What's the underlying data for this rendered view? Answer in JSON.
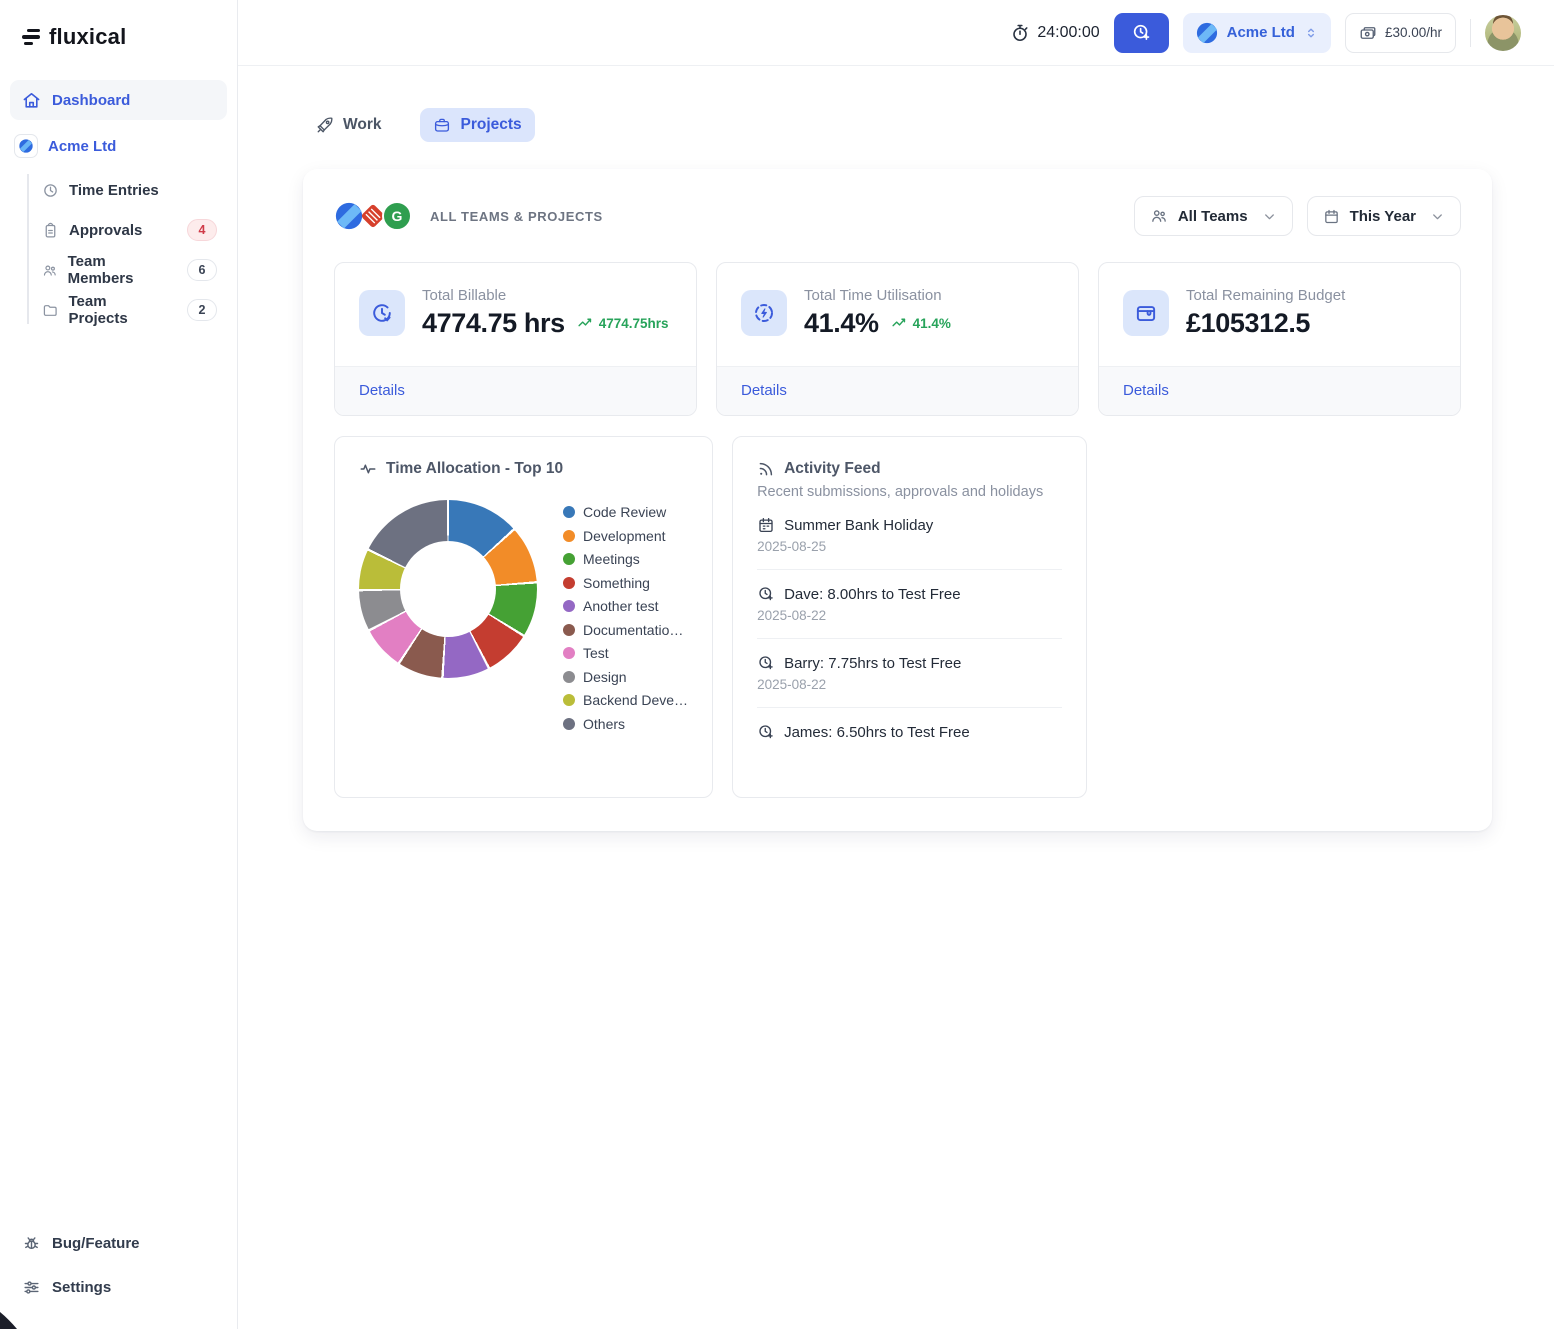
{
  "app": {
    "name": "fluxical"
  },
  "topbar": {
    "timer": "24:00:00",
    "org": "Acme Ltd",
    "rate": "£30.00/hr"
  },
  "sidebar": {
    "dashboard_label": "Dashboard",
    "org_label": "Acme Ltd",
    "sub_items": [
      {
        "label": "Time Entries",
        "icon": "clock-icon",
        "badge": "",
        "badge_style": ""
      },
      {
        "label": "Approvals",
        "icon": "clipboard-icon",
        "badge": "4",
        "badge_style": "red"
      },
      {
        "label": "Team Members",
        "icon": "users-icon",
        "badge": "6",
        "badge_style": "neutral"
      },
      {
        "label": "Team Projects",
        "icon": "folder-icon",
        "badge": "2",
        "badge_style": "neutral"
      }
    ],
    "bug_label": "Bug/Feature",
    "settings_label": "Settings"
  },
  "tabs": [
    {
      "label": "Work",
      "active": false
    },
    {
      "label": "Projects",
      "active": true
    }
  ],
  "panel": {
    "header": "ALL TEAMS & PROJECTS",
    "filters": [
      {
        "label": "All Teams",
        "icon": "users-icon"
      },
      {
        "label": "This Year",
        "icon": "calendar-icon"
      }
    ]
  },
  "stats": [
    {
      "title": "Total Billable",
      "value": "4774.75 hrs",
      "trend": "4774.75hrs",
      "link": "Details",
      "icon": "clock-history-icon"
    },
    {
      "title": "Total Time Utilisation",
      "value": "41.4%",
      "trend": "41.4%",
      "link": "Details",
      "icon": "bolt-circle-icon"
    },
    {
      "title": "Total Remaining Budget",
      "value": "£105312.5",
      "trend": "",
      "link": "Details",
      "icon": "wallet-icon"
    }
  ],
  "chart_data": {
    "type": "pie",
    "subtype": "donut",
    "title": "Time Allocation - Top 10",
    "labels": [
      "Code Review",
      "Development",
      "Meetings",
      "Something",
      "Another test",
      "Documentatio…",
      "Test",
      "Design",
      "Backend Deve…",
      "Others"
    ],
    "values": [
      13.3,
      10.5,
      10.0,
      8.6,
      8.6,
      8.3,
      8.0,
      7.5,
      7.5,
      17.7
    ],
    "unit": "percent-of-donut",
    "colors": [
      "#3878b8",
      "#f28c28",
      "#45a134",
      "#c43d30",
      "#9468c4",
      "#8a5a4e",
      "#e27fc3",
      "#8c8c90",
      "#babd39",
      "#6d7181"
    ],
    "legend_position": "right",
    "hole": 0.54
  },
  "activity": {
    "title": "Activity Feed",
    "subtitle": "Recent submissions, approvals and holidays",
    "items": [
      {
        "icon": "calendar-icon",
        "text": "Summer Bank Holiday",
        "date": "2025-08-25"
      },
      {
        "icon": "clock-plus-icon",
        "text": "Dave: 8.00hrs to Test Free",
        "date": "2025-08-22"
      },
      {
        "icon": "clock-plus-icon",
        "text": "Barry: 7.75hrs to Test Free",
        "date": "2025-08-22"
      },
      {
        "icon": "clock-plus-icon",
        "text": "James: 6.50hrs to Test Free",
        "date": ""
      }
    ]
  },
  "colors": {
    "accent_blue": "#3b5bdb",
    "accent_blue_light": "#dbe5fc",
    "trend_green": "#27a35a",
    "badge_red_text": "#d03c49",
    "badge_red_bg": "#fdecec"
  },
  "icons": {
    "logo-icon": "three-bars",
    "home-icon": "house",
    "stopwatch-icon": "stopwatch",
    "clock-plus-icon": "clock-with-plus",
    "banknote-icon": "banknote",
    "chevrons-up-down-icon": "sort-arrows",
    "rocket-icon": "rocket",
    "briefcase-icon": "briefcase",
    "pulse-icon": "activity-pulse",
    "rss-icon": "rss-feed",
    "bug-icon": "bug",
    "sliders-icon": "settings-sliders"
  }
}
